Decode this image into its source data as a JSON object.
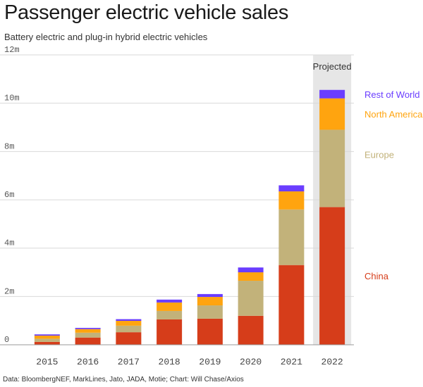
{
  "title": "Passenger electric vehicle sales",
  "subtitle": "Battery electric and plug-in hybrid electric vehicles",
  "source": "Data: BloombergNEF, MarkLines, Jato, JADA, Motie; Chart: Will Chase/Axios",
  "chart_data": {
    "type": "bar",
    "stacked": true,
    "categories": [
      "2015",
      "2016",
      "2017",
      "2018",
      "2019",
      "2020",
      "2021",
      "2022"
    ],
    "series": [
      {
        "name": "China",
        "color": "#d63d1a",
        "values": [
          0.12,
          0.3,
          0.52,
          1.05,
          1.08,
          1.2,
          3.3,
          5.7
        ]
      },
      {
        "name": "Europe",
        "color": "#c2b27a",
        "values": [
          0.13,
          0.2,
          0.27,
          0.35,
          0.55,
          1.45,
          2.3,
          3.2
        ]
      },
      {
        "name": "North America",
        "color": "#ffa40f",
        "values": [
          0.13,
          0.15,
          0.2,
          0.35,
          0.35,
          0.35,
          0.75,
          1.3
        ]
      },
      {
        "name": "Rest of World",
        "color": "#6a3dff",
        "values": [
          0.05,
          0.05,
          0.07,
          0.12,
          0.12,
          0.2,
          0.25,
          0.35
        ]
      }
    ],
    "ylim": [
      0,
      12
    ],
    "yticks": [
      0,
      2,
      4,
      6,
      8,
      10,
      12
    ],
    "yticklabels": [
      "0",
      "2m",
      "4m",
      "6m",
      "8m",
      "10m",
      "12m"
    ],
    "highlight": {
      "category": "2022",
      "label": "Projected",
      "color": "#e6e6e6"
    },
    "legend_placement": "right, aligned with the 2022 bar segments",
    "grid": "horizontal"
  }
}
